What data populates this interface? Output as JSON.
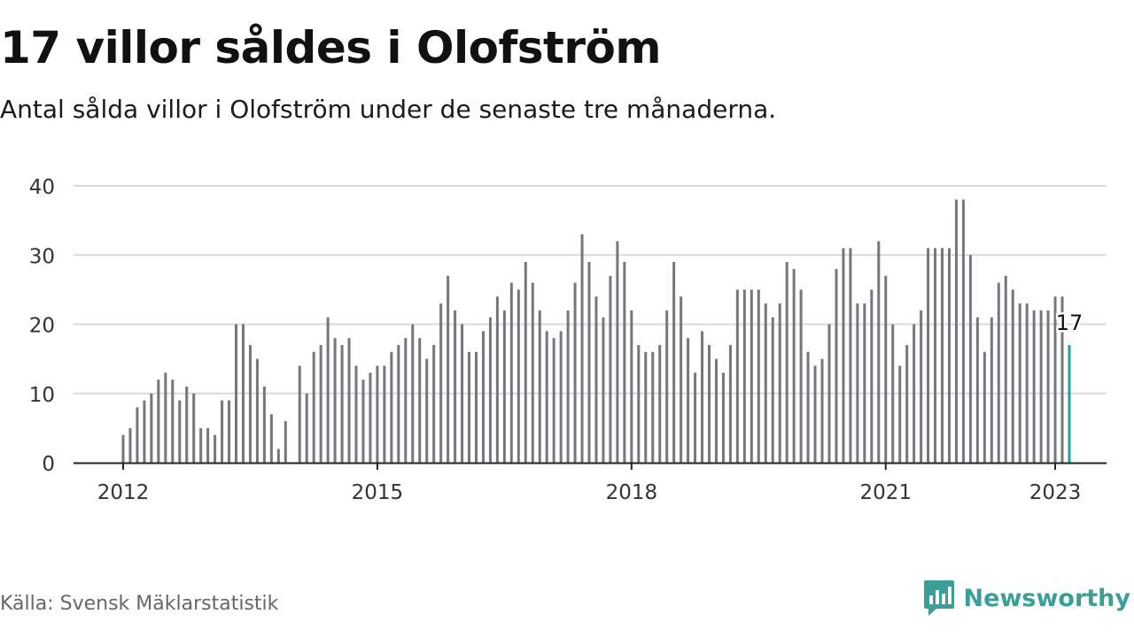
{
  "title": "17 villor såldes i Olofström",
  "subtitle": "Antal sålda villor i Olofström under de senaste tre månaderna.",
  "source": "Källa: Svensk Mäklarstatistik",
  "brand": {
    "name": "Newsworthy",
    "icon": "newsworthy-logo-icon",
    "color": "#3a9f97"
  },
  "colors": {
    "bar": "#76767c",
    "highlight": "#17a39a",
    "grid": "#d9d9d9",
    "axis": "#222222"
  },
  "chart_data": {
    "type": "bar",
    "title": "17 villor såldes i Olofström",
    "subtitle": "Antal sålda villor i Olofström under de senaste tre månaderna.",
    "xlabel": "",
    "ylabel": "",
    "ylim": [
      0,
      40
    ],
    "yticks": [
      "0",
      "10",
      "20",
      "30",
      "40"
    ],
    "xticks": [
      "2012",
      "2015",
      "2018",
      "2021",
      "2023"
    ],
    "grid": "horizontal",
    "x_start": "2012-01",
    "x_end": "2023-01",
    "values": [
      4,
      5,
      8,
      9,
      10,
      12,
      13,
      12,
      9,
      11,
      10,
      5,
      5,
      4,
      9,
      9,
      20,
      20,
      17,
      15,
      11,
      7,
      2,
      6,
      null,
      14,
      10,
      16,
      17,
      21,
      18,
      17,
      18,
      14,
      12,
      13,
      14,
      14,
      16,
      17,
      18,
      20,
      18,
      15,
      17,
      23,
      27,
      22,
      20,
      16,
      16,
      19,
      21,
      24,
      22,
      26,
      25,
      29,
      26,
      22,
      19,
      18,
      19,
      22,
      26,
      33,
      29,
      24,
      21,
      27,
      32,
      29,
      22,
      17,
      16,
      16,
      17,
      22,
      29,
      24,
      18,
      13,
      19,
      17,
      15,
      13,
      17,
      25,
      25,
      25,
      25,
      23,
      21,
      23,
      29,
      28,
      25,
      16,
      14,
      15,
      20,
      28,
      31,
      31,
      23,
      23,
      25,
      32,
      27,
      20,
      14,
      17,
      20,
      22,
      31,
      31,
      31,
      31,
      38,
      38,
      30,
      21,
      16,
      21,
      26,
      27,
      25,
      23,
      23,
      22,
      22,
      22,
      24,
      24,
      17
    ],
    "highlight_last": true,
    "annotation": "17"
  }
}
